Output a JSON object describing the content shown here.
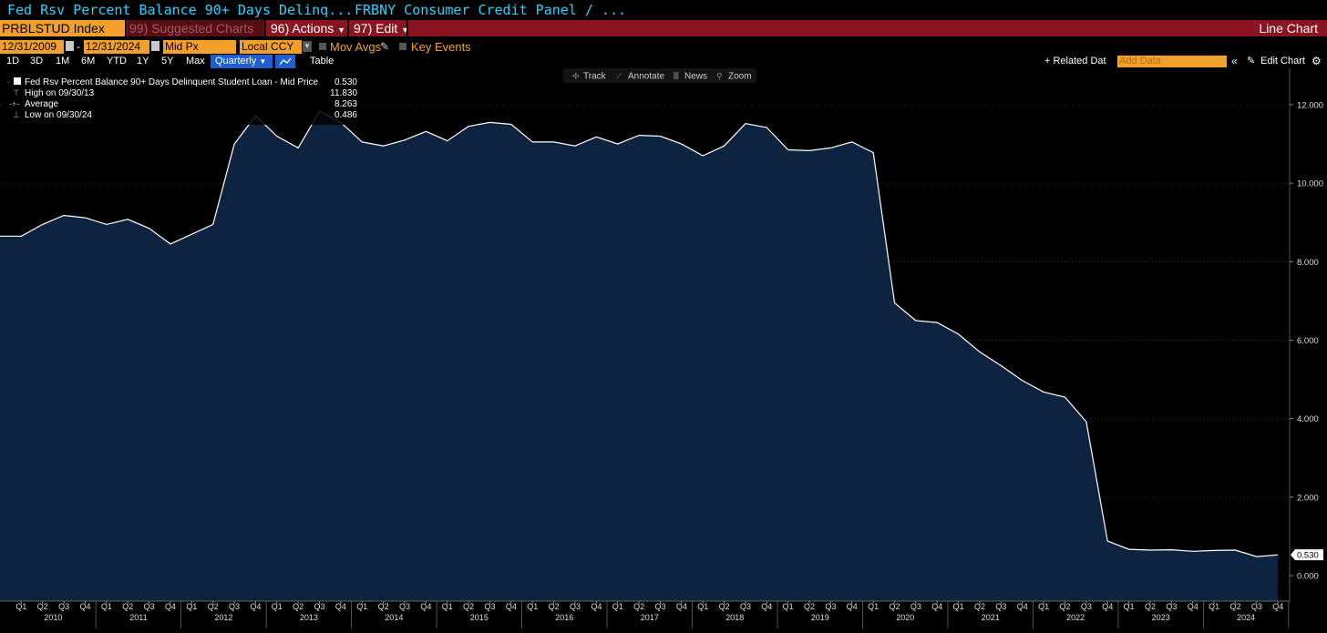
{
  "titlebar": {
    "left": "Fed Rsv Percent Balance 90+ Days Delinq...",
    "right": "FRBNY Consumer Credit Panel / ..."
  },
  "toolbar": {
    "ticker": "PRBLSTUD Index",
    "suggested": "99) Suggested Charts",
    "actions": "96) Actions",
    "edit": "97) Edit",
    "chart_type": "Line Chart"
  },
  "controls": {
    "start_date": "12/31/2009",
    "end_date": "12/31/2024",
    "field": "Mid Px",
    "currency": "Local CCY",
    "mov_avgs": "Mov Avgs",
    "key_events": "Key Events",
    "periods": [
      "1D",
      "3D",
      "1M",
      "6M",
      "YTD",
      "1Y",
      "5Y",
      "Max"
    ],
    "frequency": "Quarterly",
    "table": "Table",
    "related_data": "+ Related Dat",
    "add_data_placeholder": "Add Data",
    "edit_chart": "Edit Chart"
  },
  "chart_tools": {
    "track": "Track",
    "annotate": "Annotate",
    "news": "News",
    "zoom": "Zoom"
  },
  "legend": {
    "series_name": "Fed Rsv Percent Balance 90+ Days Delinquent Student Loan - Mid Price",
    "last": "0.530",
    "high_label": "High on 09/30/13",
    "high": "11.830",
    "avg_label": "Average",
    "avg": "8.263",
    "low_label": "Low on 09/30/24",
    "low": "0.486"
  },
  "colors": {
    "background": "#000000",
    "area_fill": "#0e2340",
    "line": "#ffffff",
    "accent_orange": "#f3a02b",
    "toolbar_red": "#8a1420",
    "title_cyan": "#29d3ff",
    "selected_blue": "#1f5fd1"
  },
  "chart_data": {
    "type": "area",
    "title": "Fed Rsv Percent Balance 90+ Days Delinquent Student Loan - Mid Price",
    "xlabel": "",
    "ylabel": "",
    "ylim": [
      0,
      12.5
    ],
    "yticks": [
      "0.000",
      "2.000",
      "4.000",
      "6.000",
      "8.000",
      "10.000",
      "12.000"
    ],
    "last_value_label": "0.530",
    "quarter_labels": [
      "Q1",
      "Q2",
      "Q3",
      "Q4",
      "Q1",
      "Q2",
      "Q3",
      "Q4",
      "Q1",
      "Q2",
      "Q3",
      "Q4",
      "Q1",
      "Q2",
      "Q3",
      "Q4",
      "Q1",
      "Q2",
      "Q3",
      "Q4",
      "Q1",
      "Q2",
      "Q3",
      "Q4",
      "Q1",
      "Q2",
      "Q3",
      "Q4",
      "Q1",
      "Q2",
      "Q3",
      "Q4",
      "Q1",
      "Q2",
      "Q3",
      "Q4",
      "Q1",
      "Q2",
      "Q3",
      "Q4",
      "Q1",
      "Q2",
      "Q3",
      "Q4",
      "Q1",
      "Q2",
      "Q3",
      "Q4",
      "Q1",
      "Q2",
      "Q3",
      "Q4",
      "Q1",
      "Q2",
      "Q3",
      "Q4",
      "Q1",
      "Q2",
      "Q3",
      "Q4"
    ],
    "years": [
      "2010",
      "2011",
      "2012",
      "2013",
      "2014",
      "2015",
      "2016",
      "2017",
      "2018",
      "2019",
      "2020",
      "2021",
      "2022",
      "2023",
      "2024"
    ],
    "x": [
      "2009 Q4",
      "2010 Q1",
      "2010 Q2",
      "2010 Q3",
      "2010 Q4",
      "2011 Q1",
      "2011 Q2",
      "2011 Q3",
      "2011 Q4",
      "2012 Q1",
      "2012 Q2",
      "2012 Q3",
      "2012 Q4",
      "2013 Q1",
      "2013 Q2",
      "2013 Q3",
      "2013 Q4",
      "2014 Q1",
      "2014 Q2",
      "2014 Q3",
      "2014 Q4",
      "2015 Q1",
      "2015 Q2",
      "2015 Q3",
      "2015 Q4",
      "2016 Q1",
      "2016 Q2",
      "2016 Q3",
      "2016 Q4",
      "2017 Q1",
      "2017 Q2",
      "2017 Q3",
      "2017 Q4",
      "2018 Q1",
      "2018 Q2",
      "2018 Q3",
      "2018 Q4",
      "2019 Q1",
      "2019 Q2",
      "2019 Q3",
      "2019 Q4",
      "2020 Q1",
      "2020 Q2",
      "2020 Q3",
      "2020 Q4",
      "2021 Q1",
      "2021 Q2",
      "2021 Q3",
      "2021 Q4",
      "2022 Q1",
      "2022 Q2",
      "2022 Q3",
      "2022 Q4",
      "2023 Q1",
      "2023 Q2",
      "2023 Q3",
      "2023 Q4",
      "2024 Q1",
      "2024 Q2",
      "2024 Q3",
      "2024 Q4"
    ],
    "series": [
      {
        "values": [
          8.65,
          8.65,
          8.95,
          9.18,
          9.12,
          8.95,
          9.08,
          8.85,
          8.45,
          8.7,
          8.95,
          11.0,
          11.72,
          11.2,
          10.9,
          11.83,
          11.55,
          11.05,
          10.95,
          11.1,
          11.32,
          11.08,
          11.45,
          11.55,
          11.5,
          11.05,
          11.05,
          10.95,
          11.18,
          11.0,
          11.22,
          11.2,
          11.0,
          10.7,
          10.95,
          11.52,
          11.42,
          10.85,
          10.83,
          10.9,
          11.05,
          10.78,
          6.95,
          6.5,
          6.45,
          6.15,
          5.7,
          5.35,
          4.97,
          4.68,
          4.55,
          3.92,
          0.88,
          0.67,
          0.65,
          0.66,
          0.62,
          0.64,
          0.65,
          0.486,
          0.53
        ]
      }
    ]
  }
}
